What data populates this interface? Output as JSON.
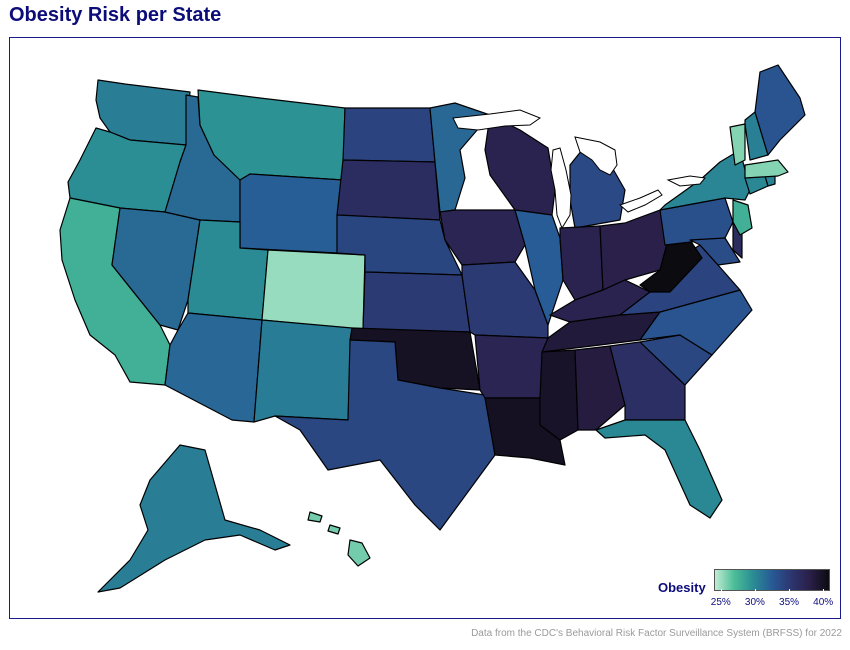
{
  "title": "Obesity Risk per State",
  "caption": "Data from the CDC's Behavioral Risk Factor Surveillance System (BRFSS) for 2022",
  "legend": {
    "title": "Obesity",
    "ticks": [
      "25%",
      "30%",
      "35%",
      "40%"
    ],
    "tick_values": [
      25,
      30,
      35,
      40
    ],
    "min": 24,
    "max": 41
  },
  "colorscale": [
    "#c2ecd4",
    "#4cbe98",
    "#2a8d94",
    "#285a96",
    "#2c3670",
    "#2a1f48",
    "#0b0b10"
  ],
  "states": [
    {
      "name": "Washington",
      "value": 30.5
    },
    {
      "name": "Oregon",
      "value": 29.6
    },
    {
      "name": "California",
      "value": 27.7
    },
    {
      "name": "Nevada",
      "value": 31.6
    },
    {
      "name": "Idaho",
      "value": 31.6
    },
    {
      "name": "Montana",
      "value": 29.4
    },
    {
      "name": "Wyoming",
      "value": 32.3
    },
    {
      "name": "Utah",
      "value": 29.8
    },
    {
      "name": "Colorado",
      "value": 25.0
    },
    {
      "name": "Arizona",
      "value": 31.8
    },
    {
      "name": "New Mexico",
      "value": 30.6
    },
    {
      "name": "North Dakota",
      "value": 34.3
    },
    {
      "name": "South Dakota",
      "value": 36.4
    },
    {
      "name": "Nebraska",
      "value": 34.1
    },
    {
      "name": "Kansas",
      "value": 35.0
    },
    {
      "name": "Oklahoma",
      "value": 40.0
    },
    {
      "name": "Texas",
      "value": 34.0
    },
    {
      "name": "Minnesota",
      "value": 31.7
    },
    {
      "name": "Iowa",
      "value": 37.4
    },
    {
      "name": "Missouri",
      "value": 35.0
    },
    {
      "name": "Arkansas",
      "value": 37.4
    },
    {
      "name": "Louisiana",
      "value": 40.1
    },
    {
      "name": "Wisconsin",
      "value": 37.7
    },
    {
      "name": "Illinois",
      "value": 32.4
    },
    {
      "name": "Michigan",
      "value": 33.8
    },
    {
      "name": "Indiana",
      "value": 37.7
    },
    {
      "name": "Ohio",
      "value": 38.0
    },
    {
      "name": "Kentucky",
      "value": 37.7
    },
    {
      "name": "Tennessee",
      "value": 38.9
    },
    {
      "name": "Mississippi",
      "value": 39.8
    },
    {
      "name": "Alabama",
      "value": 38.6
    },
    {
      "name": "Georgia",
      "value": 36.2
    },
    {
      "name": "Florida",
      "value": 30.0
    },
    {
      "name": "South Carolina",
      "value": 34.0
    },
    {
      "name": "North Carolina",
      "value": 33.0
    },
    {
      "name": "Virginia",
      "value": 34.3
    },
    {
      "name": "West Virginia",
      "value": 41.0
    },
    {
      "name": "Pennsylvania",
      "value": 33.3
    },
    {
      "name": "Maryland",
      "value": 33.6
    },
    {
      "name": "Delaware",
      "value": 36.7
    },
    {
      "name": "New Jersey",
      "value": 27.7
    },
    {
      "name": "New York",
      "value": 30.1
    },
    {
      "name": "Connecticut",
      "value": 30.0
    },
    {
      "name": "Rhode Island",
      "value": 30.2
    },
    {
      "name": "Massachusetts",
      "value": 25.5
    },
    {
      "name": "Vermont",
      "value": 25.5
    },
    {
      "name": "New Hampshire",
      "value": 30.4
    },
    {
      "name": "Maine",
      "value": 33.0
    },
    {
      "name": "Alaska",
      "value": 30.5
    },
    {
      "name": "Hawaii",
      "value": 25.9
    }
  ]
}
